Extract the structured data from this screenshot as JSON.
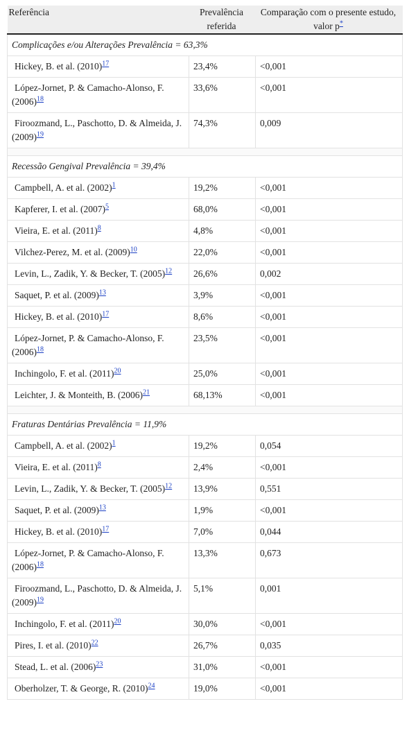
{
  "table": {
    "header": {
      "reference": "Referência",
      "prevalence": "Prevalência referida",
      "comparison": "Comparação com o presente estudo, valor p",
      "comparison_note": "*"
    },
    "sections": [
      {
        "title": "Complicações e/ou Alterações Prevalência = 63,3%",
        "rows": [
          {
            "reference": "Hickey, B. et al. (2010)",
            "ref_number": "17",
            "prevalence": "23,4%",
            "p_value": "<0,001"
          },
          {
            "reference": "López-Jornet, P. & Camacho-Alonso, F. (2006)",
            "ref_number": "18",
            "prevalence": "33,6%",
            "p_value": "<0,001"
          },
          {
            "reference": "Firoozmand, L., Paschotto, D. & Almeida, J. (2009)",
            "ref_number": "19",
            "prevalence": "74,3%",
            "p_value": "0,009"
          }
        ]
      },
      {
        "title": "Recessão Gengival Prevalência = 39,4%",
        "rows": [
          {
            "reference": "Campbell, A. et al. (2002)",
            "ref_number": "1",
            "prevalence": "19,2%",
            "p_value": "<0,001"
          },
          {
            "reference": "Kapferer, I. et al. (2007)",
            "ref_number": "5",
            "prevalence": "68,0%",
            "p_value": "<0,001"
          },
          {
            "reference": "Vieira, E. et al. (2011)",
            "ref_number": "8",
            "prevalence": "4,8%",
            "p_value": "<0,001"
          },
          {
            "reference": "Vilchez-Perez, M. et al. (2009)",
            "ref_number": "10",
            "prevalence": "22,0%",
            "p_value": "<0,001"
          },
          {
            "reference": "Levin, L., Zadik, Y. & Becker, T. (2005)",
            "ref_number": "12",
            "prevalence": "26,6%",
            "p_value": "0,002"
          },
          {
            "reference": "Saquet, P. et al. (2009)",
            "ref_number": "13",
            "prevalence": "3,9%",
            "p_value": "<0,001"
          },
          {
            "reference": "Hickey, B. et al. (2010)",
            "ref_number": "17",
            "prevalence": "8,6%",
            "p_value": "<0,001"
          },
          {
            "reference": "López-Jornet, P. & Camacho-Alonso, F. (2006)",
            "ref_number": "18",
            "prevalence": "23,5%",
            "p_value": "<0,001"
          },
          {
            "reference": "Inchingolo, F. et al. (2011)",
            "ref_number": "20",
            "prevalence": "25,0%",
            "p_value": "<0,001"
          },
          {
            "reference": "Leichter, J. & Monteith, B. (2006)",
            "ref_number": "21",
            "prevalence": "68,13%",
            "p_value": "<0,001"
          }
        ]
      },
      {
        "title": "Fraturas Dentárias Prevalência = 11,9%",
        "rows": [
          {
            "reference": "Campbell, A. et al. (2002)",
            "ref_number": "1",
            "prevalence": "19,2%",
            "p_value": "0,054"
          },
          {
            "reference": "Vieira, E. et al. (2011)",
            "ref_number": "8",
            "prevalence": "2,4%",
            "p_value": "<0,001"
          },
          {
            "reference": "Levin, L., Zadik, Y. & Becker, T. (2005)",
            "ref_number": "12",
            "prevalence": "13,9%",
            "p_value": "0,551"
          },
          {
            "reference": "Saquet, P. et al. (2009)",
            "ref_number": "13",
            "prevalence": "1,9%",
            "p_value": "<0,001"
          },
          {
            "reference": "Hickey, B. et al. (2010)",
            "ref_number": "17",
            "prevalence": "7,0%",
            "p_value": "0,044"
          },
          {
            "reference": "López-Jornet, P. & Camacho-Alonso, F. (2006)",
            "ref_number": "18",
            "prevalence": "13,3%",
            "p_value": "0,673"
          },
          {
            "reference": "Firoozmand, L., Paschotto, D. & Almeida, J. (2009)",
            "ref_number": "19",
            "prevalence": "5,1%",
            "p_value": "0,001"
          },
          {
            "reference": "Inchingolo, F. et al. (2011)",
            "ref_number": "20",
            "prevalence": "30,0%",
            "p_value": "<0,001"
          },
          {
            "reference": "Pires, I. et al. (2010)",
            "ref_number": "22",
            "prevalence": "26,7%",
            "p_value": "0,035"
          },
          {
            "reference": "Stead, L. et al. (2006)",
            "ref_number": "23",
            "prevalence": "31,0%",
            "p_value": "<0,001"
          },
          {
            "reference": "Oberholzer, T. & George, R. (2010)",
            "ref_number": "24",
            "prevalence": "19,0%",
            "p_value": "<0,001"
          }
        ]
      }
    ]
  }
}
